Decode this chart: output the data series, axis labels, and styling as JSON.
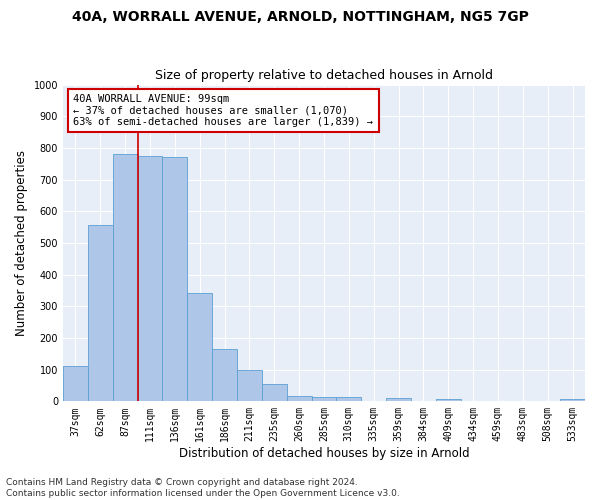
{
  "title": "40A, WORRALL AVENUE, ARNOLD, NOTTINGHAM, NG5 7GP",
  "subtitle": "Size of property relative to detached houses in Arnold",
  "xlabel": "Distribution of detached houses by size in Arnold",
  "ylabel": "Number of detached properties",
  "categories": [
    "37sqm",
    "62sqm",
    "87sqm",
    "111sqm",
    "136sqm",
    "161sqm",
    "186sqm",
    "211sqm",
    "235sqm",
    "260sqm",
    "285sqm",
    "310sqm",
    "335sqm",
    "359sqm",
    "384sqm",
    "409sqm",
    "434sqm",
    "459sqm",
    "483sqm",
    "508sqm",
    "533sqm"
  ],
  "values": [
    113,
    557,
    780,
    775,
    770,
    343,
    165,
    98,
    55,
    18,
    15,
    13,
    0,
    10,
    0,
    8,
    0,
    0,
    0,
    0,
    8
  ],
  "bar_color": "#aec6e8",
  "bar_edge_color": "#5a9fd4",
  "vline_x": 2.5,
  "vline_color": "#cc0000",
  "annotation_text": "40A WORRALL AVENUE: 99sqm\n← 37% of detached houses are smaller (1,070)\n63% of semi-detached houses are larger (1,839) →",
  "annotation_box_color": "#ffffff",
  "annotation_box_edge": "#cc0000",
  "ylim": [
    0,
    1000
  ],
  "yticks": [
    0,
    100,
    200,
    300,
    400,
    500,
    600,
    700,
    800,
    900,
    1000
  ],
  "background_color": "#e8eef8",
  "footer_line1": "Contains HM Land Registry data © Crown copyright and database right 2024.",
  "footer_line2": "Contains public sector information licensed under the Open Government Licence v3.0.",
  "title_fontsize": 10,
  "subtitle_fontsize": 9,
  "xlabel_fontsize": 8.5,
  "ylabel_fontsize": 8.5,
  "tick_fontsize": 7,
  "annotation_fontsize": 7.5,
  "footer_fontsize": 6.5
}
